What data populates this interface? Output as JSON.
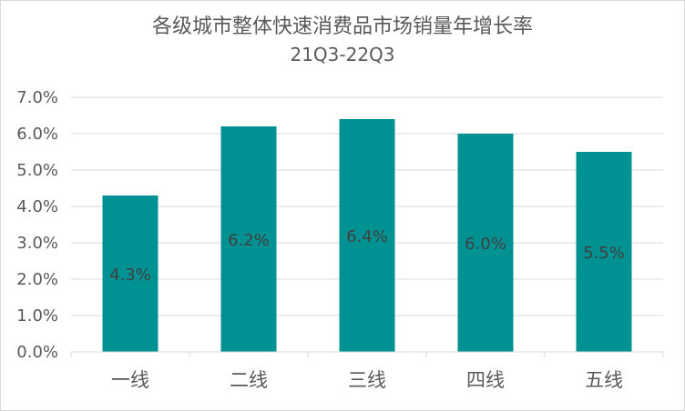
{
  "chart_data": {
    "type": "bar",
    "title": "各级城市整体快速消费品市场销量年增长率",
    "subtitle": "21Q3-22Q3",
    "categories": [
      "一线",
      "二线",
      "三线",
      "四线",
      "五线"
    ],
    "values": [
      4.3,
      6.2,
      6.4,
      6.0,
      5.5
    ],
    "data_labels": [
      "4.3%",
      "6.2%",
      "6.4%",
      "6.0%",
      "5.5%"
    ],
    "ylim": [
      0,
      7
    ],
    "yticks": [
      "0.0%",
      "1.0%",
      "2.0%",
      "3.0%",
      "4.0%",
      "5.0%",
      "6.0%",
      "7.0%"
    ],
    "grid": true,
    "legend": "none",
    "bar_color": "#009193",
    "grid_color": "#d9d9d9"
  }
}
